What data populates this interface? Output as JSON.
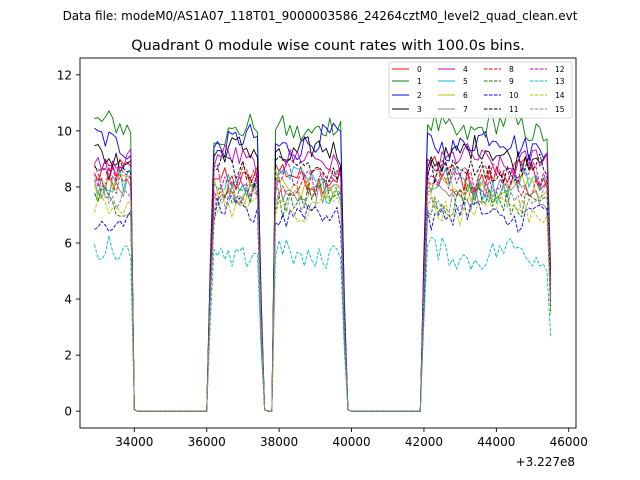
{
  "chart_data": {
    "type": "line",
    "suptitle": "Data file: modeM0/AS1A07_118T01_9000003586_24264cztM0_level2_quad_clean.evt",
    "title": "Quadrant 0 module wise count rates with 100.0s bins.",
    "xlabel": "",
    "ylabel": "",
    "x_offset_label": "+3.227e8",
    "x_offset": 322700000,
    "xlim": [
      32500,
      46200
    ],
    "ylim": [
      -0.6,
      12.6
    ],
    "xticks": [
      34000,
      36000,
      38000,
      40000,
      42000,
      44000,
      46000
    ],
    "yticks": [
      0,
      2,
      4,
      6,
      8,
      10,
      12
    ],
    "legend_location": "upper right",
    "legend_columns": 4,
    "x_start": 32900,
    "x_step": 100,
    "segments": [
      {
        "from": 32900,
        "to": 33900,
        "kind": "on"
      },
      {
        "from": 33900,
        "to": 34000,
        "kind": "fall"
      },
      {
        "from": 34000,
        "to": 36000,
        "kind": "off"
      },
      {
        "from": 36000,
        "to": 36200,
        "kind": "rise"
      },
      {
        "from": 36200,
        "to": 37400,
        "kind": "on"
      },
      {
        "from": 37400,
        "to": 37600,
        "kind": "fall"
      },
      {
        "from": 37600,
        "to": 37800,
        "kind": "off"
      },
      {
        "from": 37800,
        "to": 37900,
        "kind": "rise"
      },
      {
        "from": 37900,
        "to": 39700,
        "kind": "on"
      },
      {
        "from": 39700,
        "to": 39900,
        "kind": "fall"
      },
      {
        "from": 39900,
        "to": 41900,
        "kind": "off"
      },
      {
        "from": 41900,
        "to": 42100,
        "kind": "rise"
      },
      {
        "from": 42100,
        "to": 45400,
        "kind": "on"
      },
      {
        "from": 45400,
        "to": 45500,
        "kind": "fall_partial"
      }
    ],
    "series": [
      {
        "name": "0",
        "color": "#ff0000",
        "dash": "solid",
        "level": 8.4
      },
      {
        "name": "1",
        "color": "#008000",
        "dash": "solid",
        "level": 10.1
      },
      {
        "name": "2",
        "color": "#0000ff",
        "dash": "solid",
        "level": 9.6
      },
      {
        "name": "3",
        "color": "#000000",
        "dash": "solid",
        "level": 9.2
      },
      {
        "name": "4",
        "color": "#bf00bf",
        "dash": "solid",
        "level": 8.9
      },
      {
        "name": "5",
        "color": "#00bfbf",
        "dash": "solid",
        "level": 8.1
      },
      {
        "name": "6",
        "color": "#bfbf00",
        "dash": "solid",
        "level": 8.0
      },
      {
        "name": "7",
        "color": "#808080",
        "dash": "solid",
        "level": 7.8
      },
      {
        "name": "8",
        "color": "#ff0000",
        "dash": "dashed",
        "level": 8.2
      },
      {
        "name": "9",
        "color": "#008000",
        "dash": "dashed",
        "level": 7.6
      },
      {
        "name": "10",
        "color": "#0000ff",
        "dash": "dashed",
        "level": 7.0
      },
      {
        "name": "11",
        "color": "#000000",
        "dash": "dashed",
        "level": 8.6
      },
      {
        "name": "12",
        "color": "#bf00bf",
        "dash": "dashed",
        "level": 8.3
      },
      {
        "name": "13",
        "color": "#00bfbf",
        "dash": "dashed",
        "level": 5.6
      },
      {
        "name": "14",
        "color": "#bfbf00",
        "dash": "dashed",
        "level": 7.3
      },
      {
        "name": "15",
        "color": "#808080",
        "dash": "dashed",
        "level": 7.7
      }
    ]
  }
}
